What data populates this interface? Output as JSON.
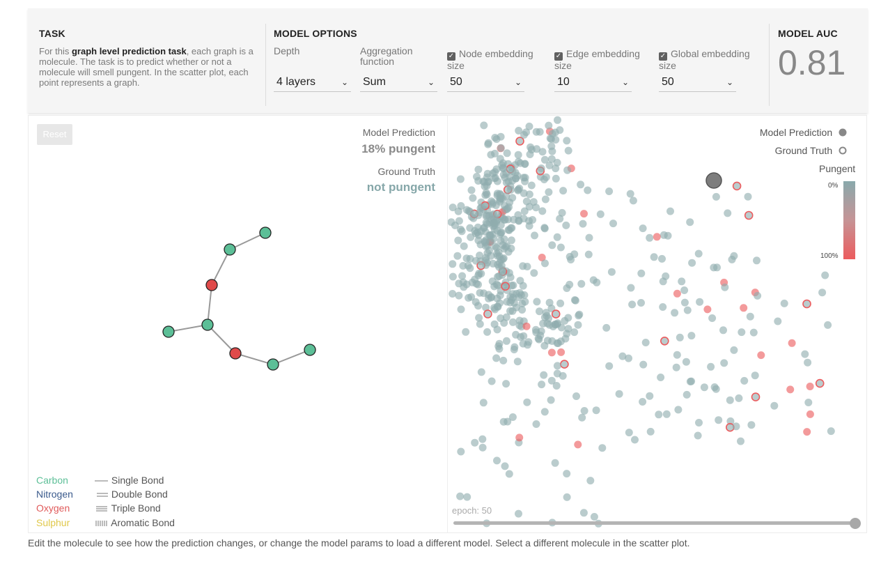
{
  "task": {
    "title": "TASK",
    "desc_prefix": "For this ",
    "desc_bold": "graph level prediction task",
    "desc_suffix": ", each graph is a molecule. The task is to predict whether or not a molecule will smell pungent. In the scatter plot, each point represents a graph."
  },
  "model_options": {
    "title": "MODEL OPTIONS",
    "depth": {
      "label": "Depth",
      "value": "4 layers"
    },
    "aggregation": {
      "label": "Aggregation function",
      "value": "Sum"
    },
    "node_embedding": {
      "label_line1": "Node embedding",
      "label_line2": "size",
      "checked": true,
      "value": "50"
    },
    "edge_embedding": {
      "label_line1": "Edge embedding",
      "label_line2": "size",
      "checked": true,
      "value": "10"
    },
    "global_embedding": {
      "label_line1": "Global embedding",
      "label_line2": "size",
      "checked": true,
      "value": "50"
    }
  },
  "model_auc": {
    "title": "MODEL AUC",
    "value": "0.81"
  },
  "reset_label": "Reset",
  "prediction": {
    "model_label": "Model Prediction",
    "model_value": "18% pungent",
    "truth_label": "Ground Truth",
    "truth_value": "not pungent"
  },
  "atom_legend": [
    {
      "name": "Carbon",
      "color": "#5cbf97"
    },
    {
      "name": "Nitrogen",
      "color": "#3a5a8c"
    },
    {
      "name": "Oxygen",
      "color": "#e05a5a"
    },
    {
      "name": "Sulphur",
      "color": "#e0c84a"
    }
  ],
  "bond_legend": [
    "Single Bond",
    "Double Bond",
    "Triple Bond",
    "Aromatic Bond"
  ],
  "molecule": {
    "atoms": [
      {
        "id": 0,
        "type": "carbon"
      },
      {
        "id": 1,
        "type": "carbon"
      },
      {
        "id": 2,
        "type": "oxygen"
      },
      {
        "id": 3,
        "type": "carbon"
      },
      {
        "id": 4,
        "type": "carbon"
      },
      {
        "id": 5,
        "type": "oxygen"
      },
      {
        "id": 6,
        "type": "carbon"
      },
      {
        "id": 7,
        "type": "carbon"
      }
    ],
    "bonds": [
      [
        0,
        1
      ],
      [
        1,
        2
      ],
      [
        2,
        3
      ],
      [
        3,
        4
      ],
      [
        3,
        5
      ],
      [
        5,
        6
      ],
      [
        6,
        7
      ]
    ]
  },
  "scatter_legend": {
    "model_prediction": "Model Prediction",
    "ground_truth": "Ground Truth",
    "pungent": "Pungent",
    "tick_top": "0%",
    "tick_bottom": "100%"
  },
  "colors": {
    "not_pungent": "#8fadae",
    "pungent": "#ec5c5e",
    "carbon": "#5cbf97",
    "oxygen": "#e04a4a",
    "truth_text": "#86a7a9"
  },
  "epoch_label": "epoch: 50",
  "footer": "Edit the molecule to see how the prediction changes, or change the model params to load a different model. Select a different molecule in the scatter plot."
}
